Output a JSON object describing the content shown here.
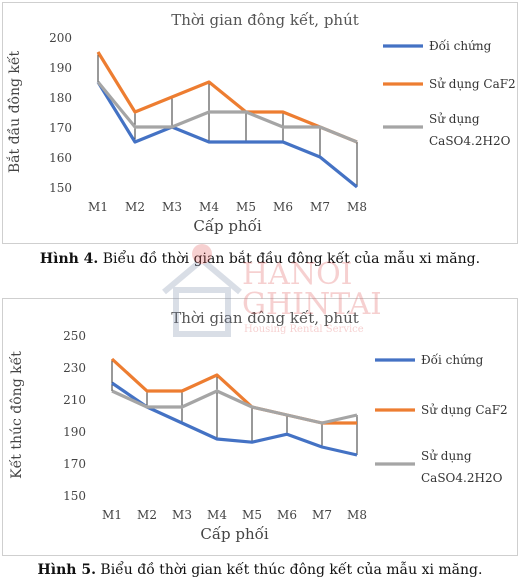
{
  "chart_data": [
    {
      "type": "line",
      "title": "Thời gian đông kết, phút",
      "xlabel": "Cấp phối",
      "ylabel": "Bắt đầu đông kết",
      "categories": [
        "M1",
        "M2",
        "M3",
        "M4",
        "M5",
        "M6",
        "M7",
        "M8"
      ],
      "ylim": [
        150,
        200
      ],
      "yticks": [
        150,
        160,
        170,
        180,
        190,
        200
      ],
      "hi_lo_lines": true,
      "legend_position": "right",
      "series": [
        {
          "name": "Đối chứng",
          "color": "#4472C4",
          "values": [
            185,
            165,
            170,
            165,
            165,
            165,
            160,
            150
          ]
        },
        {
          "name": "Sử dụng CaF2",
          "color": "#ED7D31",
          "values": [
            195,
            175,
            180,
            185,
            175,
            175,
            170,
            165
          ]
        },
        {
          "name": "Sử dụng CaSO4.2H2O",
          "name_lines": [
            "Sử dụng",
            "CaSO4.2H2O"
          ],
          "color": "#A5A5A5",
          "values": [
            185,
            170,
            170,
            175,
            175,
            170,
            170,
            165
          ]
        }
      ]
    },
    {
      "type": "line",
      "title": "Thời gian đông kết, phút",
      "xlabel": "Cấp phối",
      "ylabel": "Kết thúc đông kết",
      "categories": [
        "M1",
        "M2",
        "M3",
        "M4",
        "M5",
        "M6",
        "M7",
        "M8"
      ],
      "ylim": [
        150,
        250
      ],
      "yticks": [
        150,
        170,
        190,
        210,
        230,
        250
      ],
      "hi_lo_lines": true,
      "legend_position": "right",
      "series": [
        {
          "name": "Đối chứng",
          "color": "#4472C4",
          "values": [
            220,
            205,
            195,
            185,
            183,
            188,
            180,
            175
          ]
        },
        {
          "name": "Sử dụng CaF2",
          "color": "#ED7D31",
          "values": [
            235,
            215,
            215,
            225,
            205,
            200,
            195,
            195
          ]
        },
        {
          "name": "Sử dụng CaSO4.2H2O",
          "name_lines": [
            "Sử dụng",
            "CaSO4.2H2O"
          ],
          "color": "#A5A5A5",
          "values": [
            215,
            205,
            205,
            215,
            205,
            200,
            195,
            200
          ]
        }
      ]
    }
  ],
  "captions": [
    {
      "label": "Hình 4.",
      "text": " Biểu đồ thời gian bắt đầu đông kết của mẫu xi măng."
    },
    {
      "label": "Hình 5.",
      "text": " Biểu đồ thời gian kết thúc đông kết của mẫu xi măng."
    }
  ],
  "watermark": {
    "line1": "HANOI",
    "line2": "GHINTAI",
    "line3": "Housing Rental Service",
    "color": "#E05A5A"
  }
}
